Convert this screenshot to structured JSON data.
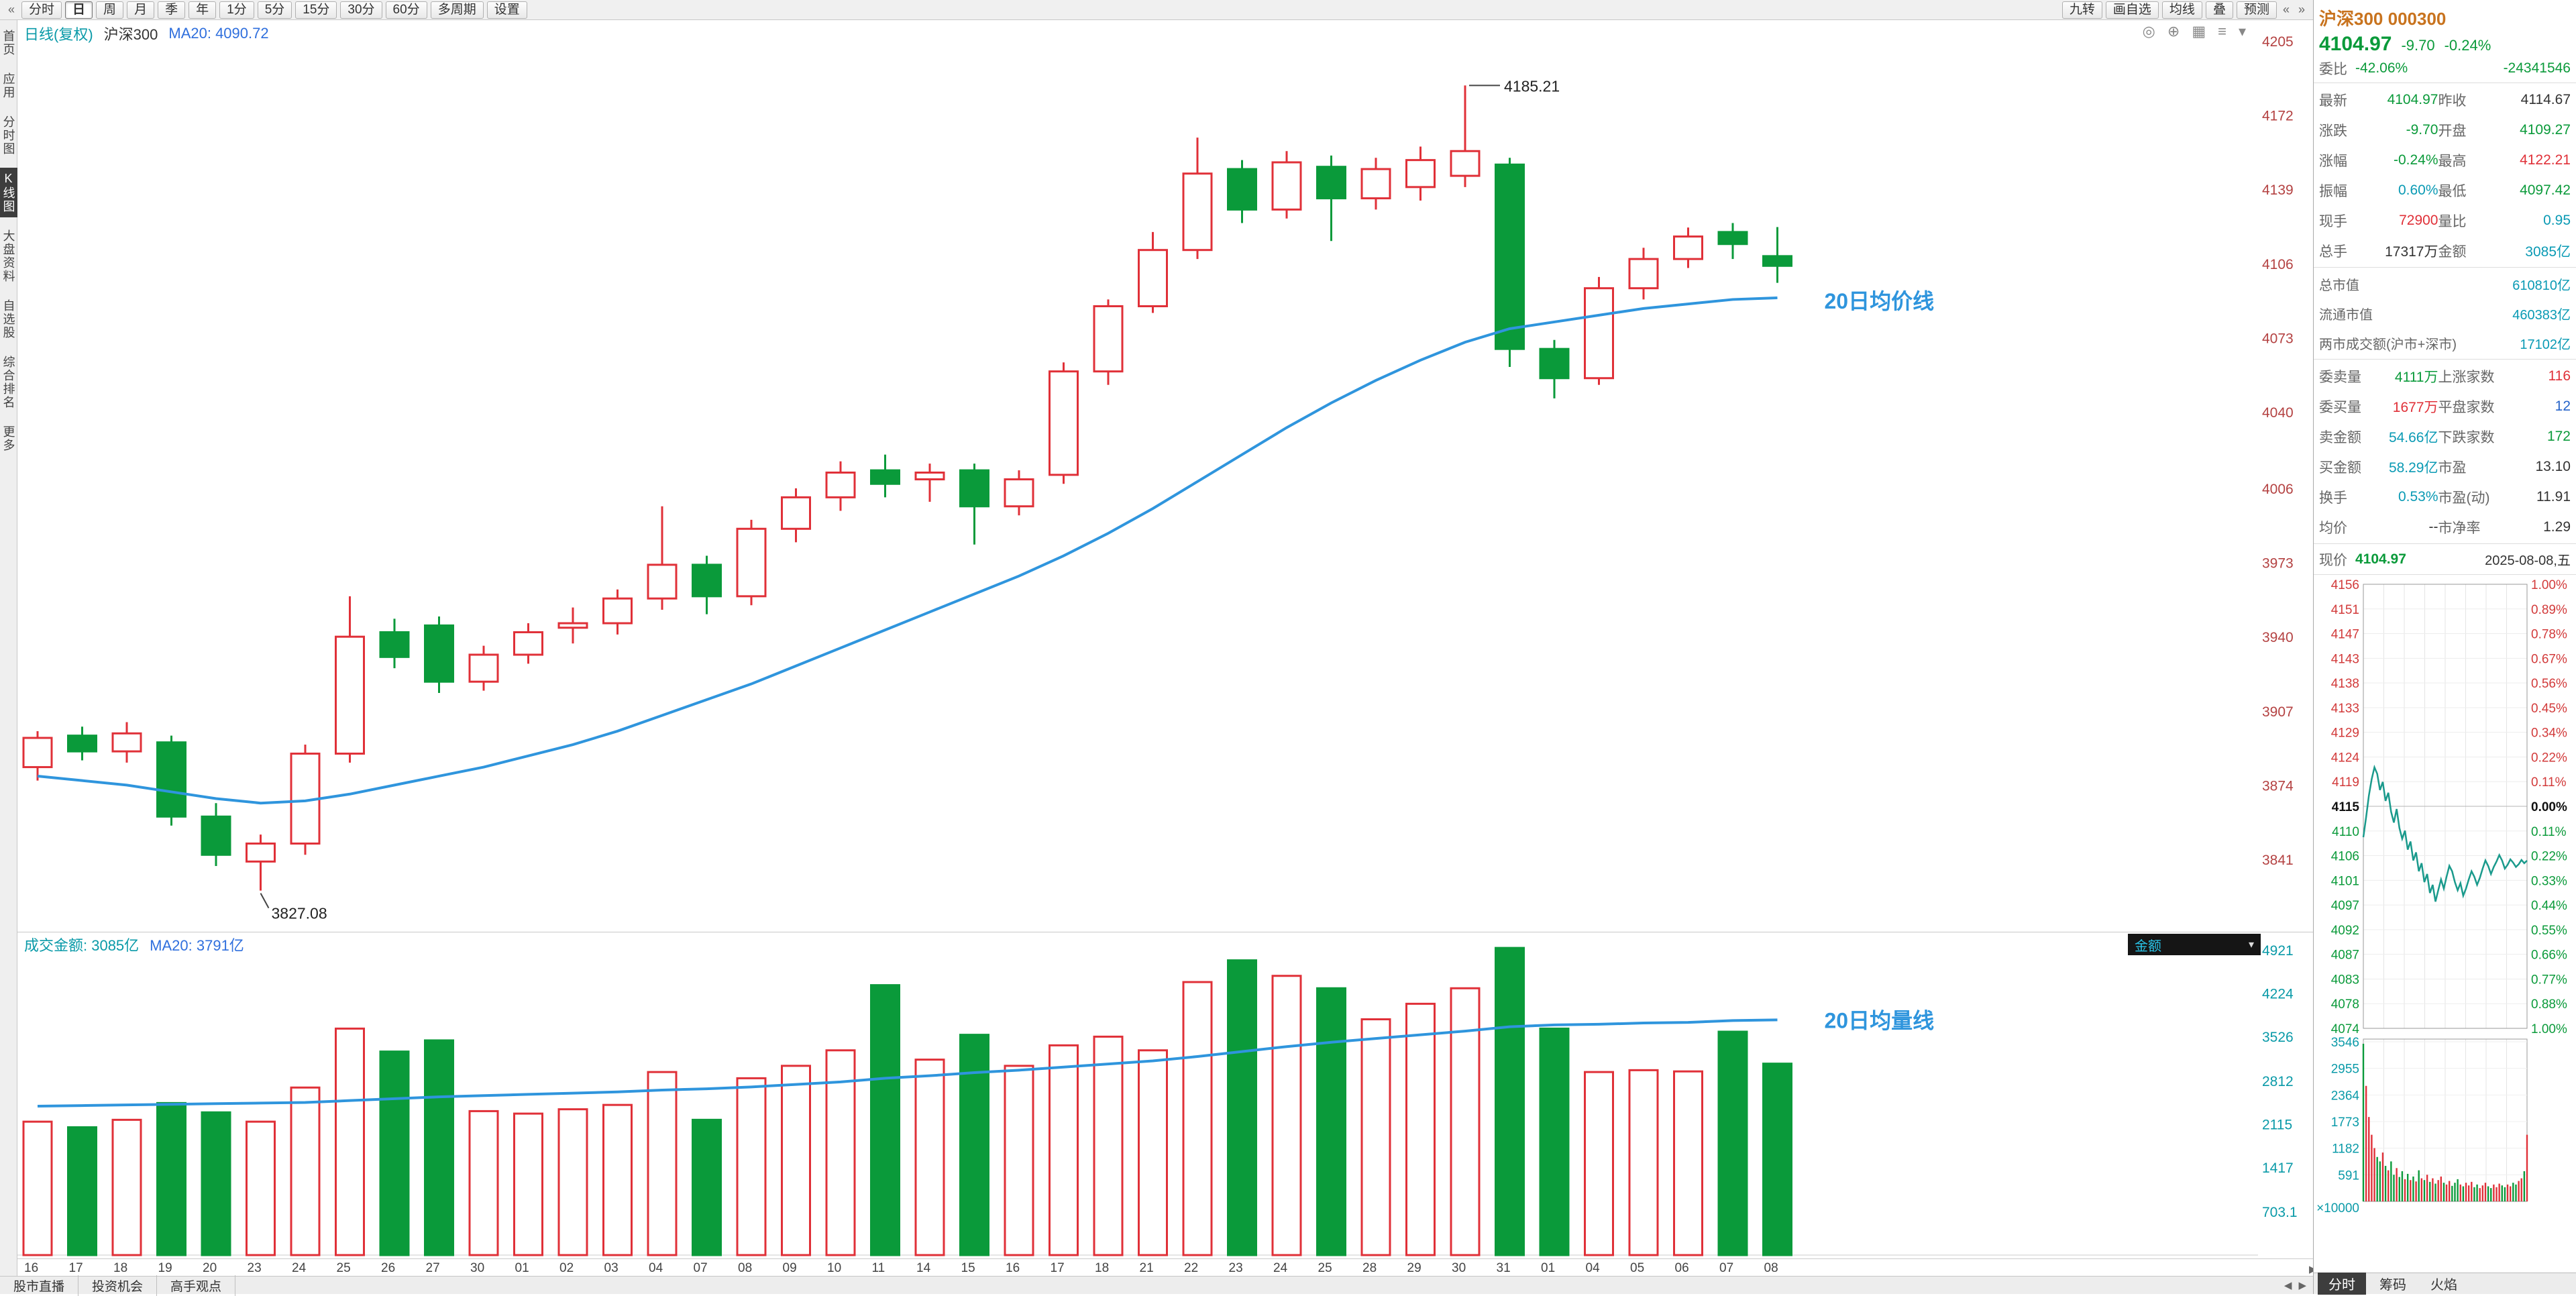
{
  "colors": {
    "up": "#e03038",
    "down": "#0a9a3a",
    "ma": "#2f95dd",
    "teal": "#0a9aa8",
    "intraday": "#1a9a8c",
    "accent_orange": "#c8731e"
  },
  "toolbar": {
    "back_icon": "«",
    "periods": [
      "分时",
      "日",
      "周",
      "月",
      "季",
      "年",
      "1分",
      "5分",
      "15分",
      "30分",
      "60分",
      "多周期",
      "设置"
    ],
    "selected": "日",
    "right_buttons": [
      "九转",
      "画自选",
      "均线",
      "叠",
      "预测"
    ],
    "prev_icon": "«",
    "next_icon": "»"
  },
  "sidebar": {
    "items": [
      "首页",
      "应用",
      "分时图",
      "K线图",
      "大盘资料",
      "自选股",
      "综合排名",
      "更多"
    ],
    "selected": "K线图"
  },
  "kpane": {
    "title": "日线(复权)",
    "symbol": "沪深300",
    "ma_label": "MA20: 4090.72",
    "ma_line_label": "20日均价线",
    "icons": [
      {
        "name": "target-icon",
        "glyph": "◎"
      },
      {
        "name": "add-icon",
        "glyph": "⊕"
      },
      {
        "name": "grid-icon",
        "glyph": "▦"
      },
      {
        "name": "list-icon",
        "glyph": "≡"
      },
      {
        "name": "collapse-icon",
        "glyph": "▾"
      }
    ]
  },
  "vpane": {
    "title": "成交金额: 3085亿",
    "ma_label": "MA20: 3791亿",
    "ma_line_label": "20日均量线",
    "selector": "金额"
  },
  "bottom_tabs": [
    "股市直播",
    "投资机会",
    "高手观点"
  ],
  "chart_data": {
    "type": "candlestick+volume",
    "title": "沪深300 日线(复权)",
    "dates": [
      "16",
      "17",
      "18",
      "19",
      "20",
      "23",
      "24",
      "25",
      "26",
      "27",
      "30",
      "01",
      "02",
      "03",
      "04",
      "07",
      "08",
      "09",
      "10",
      "11",
      "14",
      "15",
      "16",
      "17",
      "18",
      "21",
      "22",
      "23",
      "24",
      "25",
      "28",
      "29",
      "30",
      "31",
      "01",
      "04",
      "05",
      "06",
      "07",
      "08"
    ],
    "ohlc": [
      [
        3882,
        3898,
        3876,
        3895
      ],
      [
        3896,
        3900,
        3885,
        3889
      ],
      [
        3889,
        3902,
        3884,
        3897
      ],
      [
        3893,
        3896,
        3856,
        3860
      ],
      [
        3860,
        3866,
        3838,
        3843
      ],
      [
        3840,
        3852,
        3827.08,
        3848
      ],
      [
        3848,
        3892,
        3843,
        3888
      ],
      [
        3888,
        3958,
        3884,
        3940
      ],
      [
        3942,
        3948,
        3926,
        3931
      ],
      [
        3945,
        3949,
        3915,
        3920
      ],
      [
        3920,
        3936,
        3916,
        3932
      ],
      [
        3932,
        3946,
        3928,
        3942
      ],
      [
        3944,
        3953,
        3937,
        3946
      ],
      [
        3946,
        3961,
        3941,
        3957
      ],
      [
        3957,
        3998,
        3952,
        3972
      ],
      [
        3972,
        3976,
        3950,
        3958
      ],
      [
        3958,
        3992,
        3954,
        3988
      ],
      [
        3988,
        4006,
        3982,
        4002
      ],
      [
        4002,
        4018,
        3996,
        4013
      ],
      [
        4014,
        4021,
        4002,
        4008
      ],
      [
        4010,
        4017,
        4000,
        4013
      ],
      [
        4014,
        4017,
        3981,
        3998
      ],
      [
        3998,
        4014,
        3994,
        4010
      ],
      [
        4012,
        4062,
        4008,
        4058
      ],
      [
        4058,
        4090,
        4052,
        4087
      ],
      [
        4087,
        4120,
        4084,
        4112
      ],
      [
        4112,
        4162,
        4108,
        4146
      ],
      [
        4148,
        4152,
        4124,
        4130
      ],
      [
        4130,
        4156,
        4126,
        4151
      ],
      [
        4149,
        4154,
        4116,
        4135
      ],
      [
        4135,
        4153,
        4130,
        4148
      ],
      [
        4140,
        4158,
        4134,
        4152
      ],
      [
        4145,
        4185.21,
        4140,
        4156
      ],
      [
        4150,
        4153,
        4060,
        4068
      ],
      [
        4068,
        4072,
        4046,
        4055
      ],
      [
        4055,
        4100,
        4052,
        4095
      ],
      [
        4095,
        4113,
        4090,
        4108
      ],
      [
        4108,
        4122,
        4104,
        4118
      ],
      [
        4120,
        4124,
        4108,
        4114.67
      ],
      [
        4109.27,
        4122.21,
        4097.42,
        4104.97
      ]
    ],
    "volumes": [
      2150,
      2060,
      2180,
      2450,
      2300,
      2150,
      2700,
      3650,
      3280,
      3460,
      2320,
      2280,
      2350,
      2420,
      2950,
      2180,
      2850,
      3050,
      3300,
      4350,
      3150,
      3550,
      3050,
      3380,
      3520,
      3300,
      4400,
      4750,
      4500,
      4300,
      3800,
      4050,
      4300,
      4950,
      3650,
      2950,
      2980,
      2960,
      3600,
      3085
    ],
    "ma20_price": [
      3878,
      3876,
      3874,
      3871,
      3868,
      3866,
      3867,
      3870,
      3874,
      3878,
      3882,
      3887,
      3892,
      3898,
      3905,
      3912,
      3919,
      3927,
      3935,
      3943,
      3951,
      3959,
      3967,
      3976,
      3986,
      3997,
      4009,
      4021,
      4033,
      4044,
      4054,
      4063,
      4071,
      4077,
      4080,
      4083,
      4086,
      4088,
      4090,
      4090.72
    ],
    "ma20_volume": [
      2400,
      2410,
      2420,
      2430,
      2440,
      2450,
      2460,
      2490,
      2520,
      2550,
      2570,
      2590,
      2610,
      2630,
      2660,
      2680,
      2710,
      2750,
      2790,
      2850,
      2890,
      2940,
      2980,
      3030,
      3080,
      3130,
      3200,
      3280,
      3360,
      3430,
      3490,
      3550,
      3610,
      3680,
      3710,
      3720,
      3740,
      3750,
      3780,
      3791
    ],
    "price_axis": [
      4205,
      4172,
      4139,
      4106,
      4073,
      4040,
      4006,
      3973,
      3940,
      3907,
      3874,
      3841
    ],
    "volume_axis": [
      4921,
      4224,
      3526,
      2812,
      2115,
      1417,
      703.1
    ],
    "high_point": {
      "index": 32,
      "price": 4185.21,
      "label": "4185.21"
    },
    "low_point": {
      "index": 5,
      "price": 3827.08,
      "label": "3827.08"
    },
    "ma_last_price": 4090.72,
    "ma_last_volume": 3791
  },
  "quote": {
    "name": "沪深300",
    "code": "000300",
    "price": "4104.97",
    "change": "-9.70",
    "change_pct": "-0.24%",
    "weibi_label": "委比",
    "weibi_value": "-42.06%",
    "weicha_value": "-24341546",
    "rows_main": [
      [
        "最新",
        "4104.97",
        "down",
        "昨收",
        "4114.67",
        "dark"
      ],
      [
        "涨跌",
        "-9.70",
        "down",
        "开盘",
        "4109.27",
        "down"
      ],
      [
        "涨幅",
        "-0.24%",
        "down",
        "最高",
        "4122.21",
        "up"
      ],
      [
        "振幅",
        "0.60%",
        "teal",
        "最低",
        "4097.42",
        "down"
      ],
      [
        "现手",
        "72900",
        "up",
        "量比",
        "0.95",
        "teal"
      ],
      [
        "总手",
        "17317万",
        "dark",
        "金额",
        "3085亿",
        "teal"
      ]
    ],
    "rows_caps": [
      [
        "总市值",
        "610810亿",
        "teal"
      ],
      [
        "流通市值",
        "460383亿",
        "teal"
      ],
      [
        "两市成交额(沪市+深市)",
        "17102亿",
        "teal"
      ]
    ],
    "rows_order": [
      [
        "委卖量",
        "4111万",
        "down",
        "上涨家数",
        "116",
        "up"
      ],
      [
        "委买量",
        "1677万",
        "up",
        "平盘家数",
        "12",
        "blue"
      ],
      [
        "卖金额",
        "54.66亿",
        "teal",
        "下跌家数",
        "172",
        "down"
      ],
      [
        "买金额",
        "58.29亿",
        "teal",
        "市盈",
        "13.10",
        "dark"
      ],
      [
        "换手",
        "0.53%",
        "teal",
        "市盈(动)",
        "11.91",
        "dark"
      ],
      [
        "均价",
        "--",
        "dark",
        "市净率",
        "1.29",
        "dark"
      ]
    ],
    "now_label": "现价",
    "now_price": "4104.97",
    "date": "2025-08-08,五"
  },
  "mini": {
    "price_top": 4156,
    "price_bottom": 4074,
    "prev_close": 4115,
    "price_labels": [
      "4156",
      "4151",
      "4147",
      "4143",
      "4138",
      "4133",
      "4129",
      "4124",
      "4119",
      "4115",
      "4110",
      "4106",
      "4101",
      "4097",
      "4092",
      "4087",
      "4083",
      "4078",
      "4074"
    ],
    "pct_labels": [
      "1.00%",
      "0.89%",
      "0.78%",
      "0.67%",
      "0.56%",
      "0.45%",
      "0.34%",
      "0.22%",
      "0.11%",
      "0.00%",
      "0.11%",
      "0.22%",
      "0.33%",
      "0.44%",
      "0.55%",
      "0.66%",
      "0.77%",
      "0.88%",
      "1.00%"
    ],
    "vol_labels": [
      "3546",
      "2955",
      "2364",
      "1773",
      "1182",
      "591"
    ],
    "vol_unit": "×10000",
    "vol_max": 3546,
    "prices": [
      4109.3,
      4113.0,
      4117.0,
      4120.0,
      4122.2,
      4121.0,
      4118.0,
      4119.5,
      4116.0,
      4117.5,
      4114.0,
      4112.0,
      4114.5,
      4111.0,
      4109.0,
      4110.5,
      4107.0,
      4108.5,
      4105.0,
      4106.5,
      4103.0,
      4104.5,
      4101.0,
      4102.5,
      4099.0,
      4100.5,
      4097.4,
      4099.5,
      4101.5,
      4099.8,
      4102.0,
      4104.0,
      4103.0,
      4101.0,
      4099.5,
      4100.8,
      4098.5,
      4099.8,
      4101.5,
      4103.0,
      4102.0,
      4100.5,
      4101.8,
      4103.5,
      4105.0,
      4104.0,
      4102.5,
      4103.8,
      4104.8,
      4106.0,
      4105.0,
      4103.5,
      4104.2,
      4105.2,
      4104.6,
      4103.8,
      4104.3,
      4105.1,
      4104.5,
      4104.97
    ],
    "volumes": [
      3546,
      2600,
      1900,
      1500,
      1200,
      1000,
      900,
      1100,
      800,
      700,
      900,
      600,
      750,
      550,
      680,
      500,
      620,
      480,
      560,
      450,
      700,
      520,
      480,
      600,
      440,
      520,
      400,
      480,
      560,
      420,
      380,
      460,
      350,
      420,
      500,
      380,
      340,
      420,
      360,
      440,
      320,
      380,
      300,
      360,
      420,
      340,
      300,
      380,
      320,
      400,
      360,
      320,
      380,
      340,
      420,
      380,
      460,
      520,
      680,
      1500
    ],
    "tabs": [
      "分时",
      "筹码",
      "火焰"
    ],
    "selected_tab": "分时"
  }
}
